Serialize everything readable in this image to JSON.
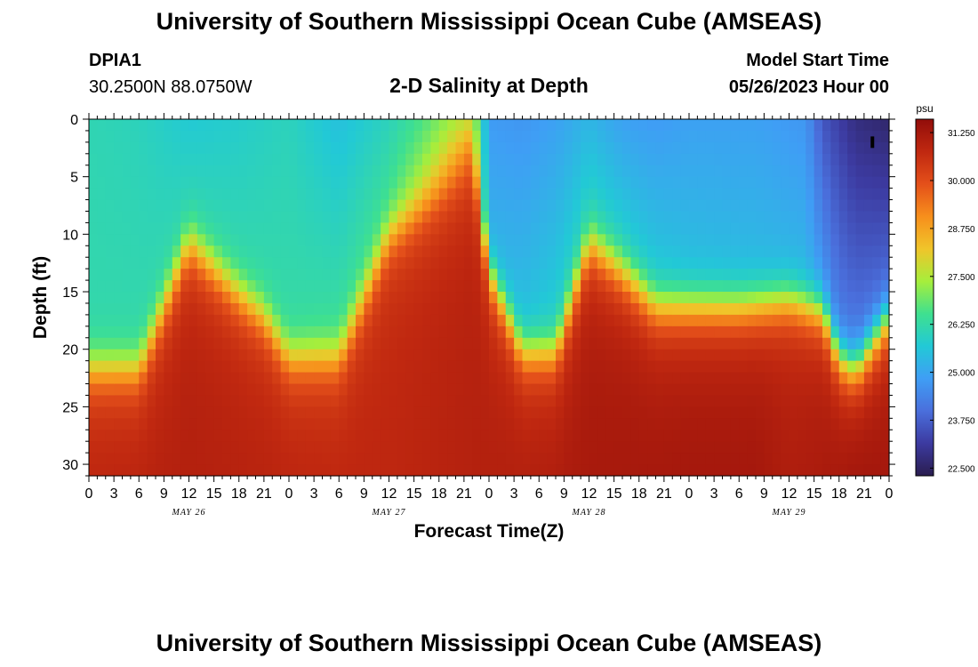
{
  "header": {
    "title": "University of Southern Mississippi Ocean Cube (AMSEAS)",
    "station": "DPIA1",
    "coords": "30.2500N  88.0750W",
    "subtitle": "2-D Salinity at Depth",
    "model_start_label": "Model Start Time",
    "model_start_value": "05/26/2023 Hour 00"
  },
  "footer": {
    "title": "University of Southern Mississippi Ocean Cube (AMSEAS)"
  },
  "colors": {
    "scale": [
      "#2a1d4f",
      "#3c3aa0",
      "#4a6fdc",
      "#3f9ef5",
      "#22c9d6",
      "#3fe08f",
      "#a6ee3c",
      "#f0c52a",
      "#f78f1c",
      "#e4501a",
      "#c02810",
      "#920d0a"
    ]
  },
  "chart_data": {
    "type": "heatmap",
    "xlabel": "Forecast Time(Z)",
    "ylabel": "Depth (ft)",
    "x_tick_labels": [
      "0",
      "3",
      "6",
      "9",
      "12",
      "15",
      "18",
      "21",
      "0",
      "3",
      "6",
      "9",
      "12",
      "15",
      "18",
      "21",
      "0",
      "3",
      "6",
      "9",
      "12",
      "15",
      "18",
      "21",
      "0",
      "3",
      "6",
      "9",
      "12",
      "15",
      "18",
      "21",
      "0"
    ],
    "x_range_hours": [
      0,
      96
    ],
    "day_labels": [
      {
        "label": "MAY 26",
        "hour": 12
      },
      {
        "label": "MAY 27",
        "hour": 36
      },
      {
        "label": "MAY 28",
        "hour": 60
      },
      {
        "label": "MAY 29",
        "hour": 84
      }
    ],
    "y_ticks": [
      0,
      5,
      10,
      15,
      20,
      25,
      30
    ],
    "ylim": [
      0,
      31
    ],
    "colorbar": {
      "unit": "psu",
      "ticks": [
        "31.250",
        "30.000",
        "28.750",
        "27.500",
        "26.250",
        "25.000",
        "23.750",
        "22.500"
      ],
      "range": [
        22.3,
        31.6
      ]
    },
    "halocline_depth_ft": {
      "hours": [
        0,
        6,
        12,
        18,
        21,
        24,
        30,
        36,
        42,
        46,
        48,
        52,
        56,
        60,
        64,
        68,
        72,
        78,
        84,
        88,
        90,
        92,
        96
      ],
      "values": [
        21.5,
        21.5,
        10.5,
        15,
        17,
        20.5,
        20.5,
        10,
        6,
        3,
        13,
        20,
        20,
        10.5,
        13,
        16,
        16,
        16,
        15.5,
        16.5,
        20.5,
        21.5,
        17
      ]
    },
    "surface_salinity_psu": {
      "hours": [
        0,
        6,
        12,
        18,
        24,
        30,
        36,
        40,
        44,
        46,
        48,
        52,
        56,
        60,
        64,
        68,
        72,
        80,
        86,
        88,
        92,
        96
      ],
      "values": [
        26.1,
        26.0,
        25.7,
        25.8,
        26.0,
        25.5,
        26.0,
        26.6,
        27.4,
        27.6,
        24.8,
        24.7,
        24.9,
        25.3,
        24.9,
        24.8,
        24.9,
        24.9,
        24.7,
        23.6,
        22.8,
        22.6
      ]
    },
    "surface_layer_max_psu": {
      "hours": [
        0,
        24,
        36,
        44,
        46,
        48,
        60,
        72,
        86,
        90,
        96
      ],
      "values": [
        26.2,
        26.3,
        26.7,
        28.6,
        28.9,
        25.3,
        26.2,
        25.6,
        25.4,
        24.4,
        24.2
      ]
    },
    "bottom_salinity_psu": {
      "hours": [
        0,
        12,
        24,
        36,
        48,
        60,
        72,
        80,
        84,
        88,
        92,
        96
      ],
      "values": [
        30.9,
        31.0,
        30.9,
        30.8,
        31.0,
        31.2,
        31.3,
        31.3,
        31.1,
        31.2,
        31.45,
        31.3
      ]
    }
  }
}
